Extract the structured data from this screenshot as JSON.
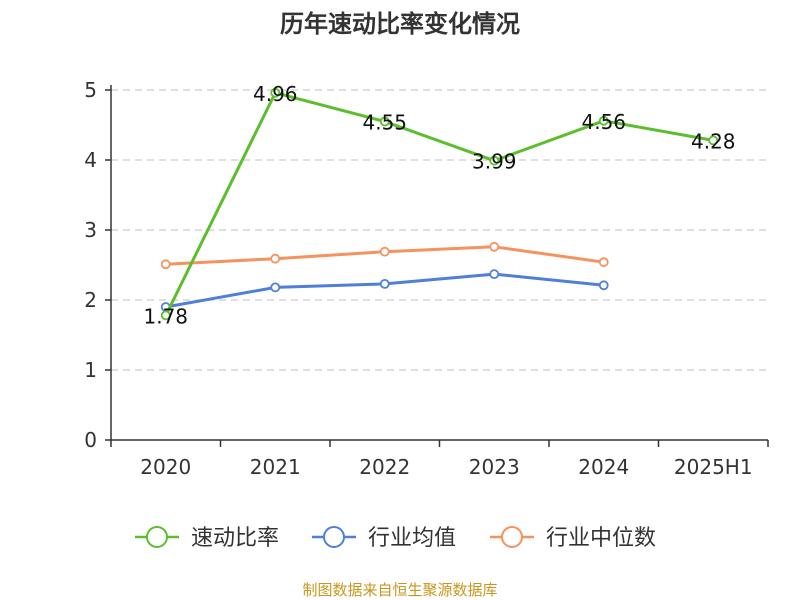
{
  "chart_data": {
    "type": "line",
    "title": "历年速动比率变化情况",
    "categories": [
      "2020",
      "2021",
      "2022",
      "2023",
      "2024",
      "2025H1"
    ],
    "ylim": [
      0,
      5
    ],
    "yticks": [
      0,
      1,
      2,
      3,
      4,
      5
    ],
    "grid": true,
    "legend_position": "bottom",
    "series": [
      {
        "name": "速动比率",
        "color": "#5cbd2d",
        "values": [
          1.78,
          4.96,
          4.55,
          3.99,
          4.56,
          4.28
        ],
        "data_labels": true
      },
      {
        "name": "行业均值",
        "color": "#4f7fd9",
        "values": [
          1.9,
          2.18,
          2.23,
          2.37,
          2.21,
          null
        ],
        "data_labels": false
      },
      {
        "name": "行业中位数",
        "color": "#f5925e",
        "values": [
          2.51,
          2.59,
          2.69,
          2.76,
          2.54,
          null
        ],
        "data_labels": false
      }
    ],
    "source": "制图数据来自恒生聚源数据库",
    "source_color": "#c8961c"
  }
}
